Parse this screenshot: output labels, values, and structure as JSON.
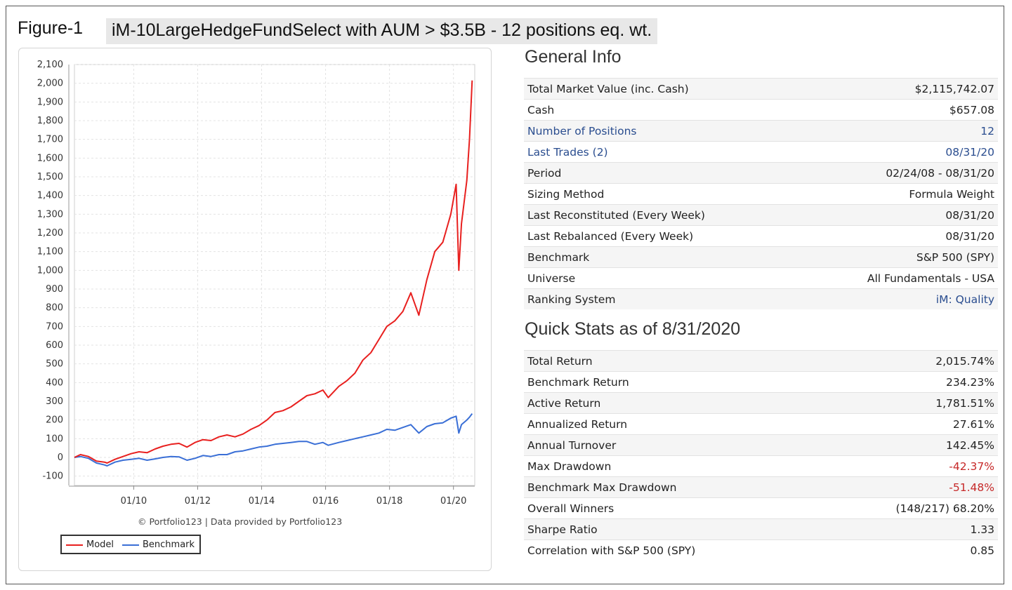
{
  "figure": {
    "label": "Figure-1",
    "title": "iM-10LargeHedgeFundSelect with AUM > $3.5B - 12 positions eq. wt."
  },
  "chart_data": {
    "type": "line",
    "title": "",
    "xlabel": "",
    "ylabel": "",
    "x_ticks": [
      "01/10",
      "01/12",
      "01/14",
      "01/16",
      "01/18",
      "01/20"
    ],
    "y_ticks": [
      "2,100",
      "2,000",
      "1,900",
      "1,800",
      "1,700",
      "1,600",
      "1,500",
      "1,400",
      "1,300",
      "1,200",
      "1,100",
      "1,000",
      "900",
      "800",
      "700",
      "600",
      "500",
      "400",
      "300",
      "200",
      "100",
      "0",
      "-100"
    ],
    "ylim": [
      -150,
      2100
    ],
    "x_range": [
      "02/24/08",
      "08/31/20"
    ],
    "grid": true,
    "legend_position": "bottom-left",
    "credit": "© Portfolio123 | Data provided by Portfolio123",
    "series": [
      {
        "name": "Model",
        "color": "#e8201f",
        "x": [
          "02/08",
          "05/08",
          "08/08",
          "11/08",
          "02/09",
          "03/09",
          "06/09",
          "09/09",
          "12/09",
          "03/10",
          "06/10",
          "09/10",
          "12/10",
          "03/11",
          "06/11",
          "09/11",
          "12/11",
          "03/12",
          "06/12",
          "09/12",
          "12/12",
          "03/13",
          "06/13",
          "09/13",
          "12/13",
          "03/14",
          "06/14",
          "09/14",
          "12/14",
          "03/15",
          "06/15",
          "09/15",
          "12/15",
          "02/16",
          "06/16",
          "09/16",
          "12/16",
          "03/17",
          "06/17",
          "09/17",
          "12/17",
          "03/18",
          "06/18",
          "09/18",
          "12/18",
          "03/19",
          "06/19",
          "09/19",
          "12/19",
          "02/20",
          "03/20",
          "04/20",
          "06/20",
          "07/20",
          "08/20"
        ],
        "values": [
          0,
          15,
          5,
          -20,
          -25,
          -30,
          -10,
          5,
          20,
          30,
          25,
          45,
          60,
          70,
          75,
          55,
          80,
          95,
          90,
          110,
          120,
          110,
          125,
          150,
          170,
          200,
          240,
          250,
          270,
          300,
          330,
          340,
          360,
          320,
          380,
          410,
          450,
          520,
          560,
          630,
          700,
          730,
          780,
          880,
          760,
          950,
          1100,
          1150,
          1300,
          1460,
          1000,
          1250,
          1480,
          1700,
          2015
        ]
      },
      {
        "name": "Benchmark",
        "color": "#3a6fd6",
        "x": [
          "02/08",
          "05/08",
          "08/08",
          "11/08",
          "02/09",
          "03/09",
          "06/09",
          "09/09",
          "12/09",
          "03/10",
          "06/10",
          "09/10",
          "12/10",
          "03/11",
          "06/11",
          "09/11",
          "12/11",
          "03/12",
          "06/12",
          "09/12",
          "12/12",
          "03/13",
          "06/13",
          "09/13",
          "12/13",
          "03/14",
          "06/14",
          "09/14",
          "12/14",
          "03/15",
          "06/15",
          "09/15",
          "12/15",
          "02/16",
          "06/16",
          "09/16",
          "12/16",
          "03/17",
          "06/17",
          "09/17",
          "12/17",
          "03/18",
          "06/18",
          "09/18",
          "12/18",
          "03/19",
          "06/19",
          "09/19",
          "12/19",
          "02/20",
          "03/20",
          "04/20",
          "06/20",
          "07/20",
          "08/20"
        ],
        "values": [
          0,
          5,
          -5,
          -30,
          -40,
          -45,
          -25,
          -15,
          -10,
          -5,
          -15,
          -8,
          0,
          5,
          3,
          -15,
          -5,
          10,
          5,
          15,
          15,
          30,
          35,
          45,
          55,
          60,
          70,
          75,
          80,
          85,
          85,
          70,
          80,
          65,
          80,
          90,
          100,
          110,
          120,
          130,
          150,
          145,
          160,
          175,
          130,
          165,
          180,
          185,
          210,
          220,
          130,
          175,
          200,
          215,
          234
        ]
      }
    ]
  },
  "general_info": {
    "heading": "General Info",
    "rows": [
      {
        "label": "Total Market Value (inc. Cash)",
        "value": "$2,115,742.07"
      },
      {
        "label": "Cash",
        "value": "$657.08"
      },
      {
        "label": "Number of Positions",
        "value": "12"
      },
      {
        "label": "Last Trades (2)",
        "value": "08/31/20"
      },
      {
        "label": "Period",
        "value": "02/24/08 - 08/31/20"
      },
      {
        "label": "Sizing Method",
        "value": "Formula Weight"
      },
      {
        "label": "Last Reconstituted (Every Week)",
        "value": "08/31/20"
      },
      {
        "label": "Last Rebalanced (Every Week)",
        "value": "08/31/20"
      },
      {
        "label": "Benchmark",
        "value": "S&P 500 (SPY)"
      },
      {
        "label": "Universe",
        "value": "All Fundamentals - USA"
      },
      {
        "label": "Ranking System",
        "value": "iM: Quality"
      }
    ]
  },
  "quick_stats": {
    "heading": "Quick Stats as of 8/31/2020",
    "rows": [
      {
        "label": "Total Return",
        "value": "2,015.74%"
      },
      {
        "label": "Benchmark Return",
        "value": "234.23%"
      },
      {
        "label": "Active Return",
        "value": "1,781.51%"
      },
      {
        "label": "Annualized Return",
        "value": "27.61%"
      },
      {
        "label": "Annual Turnover",
        "value": "142.45%"
      },
      {
        "label": "Max Drawdown",
        "value": "-42.37%"
      },
      {
        "label": "Benchmark Max Drawdown",
        "value": "-51.48%"
      },
      {
        "label": "Overall Winners",
        "value": "(148/217) 68.20%"
      },
      {
        "label": "Sharpe Ratio",
        "value": "1.33"
      },
      {
        "label": "Correlation with S&P 500 (SPY)",
        "value": "0.85"
      }
    ]
  },
  "colors": {
    "link": "#2a4d8f",
    "negative": "#c62828"
  }
}
